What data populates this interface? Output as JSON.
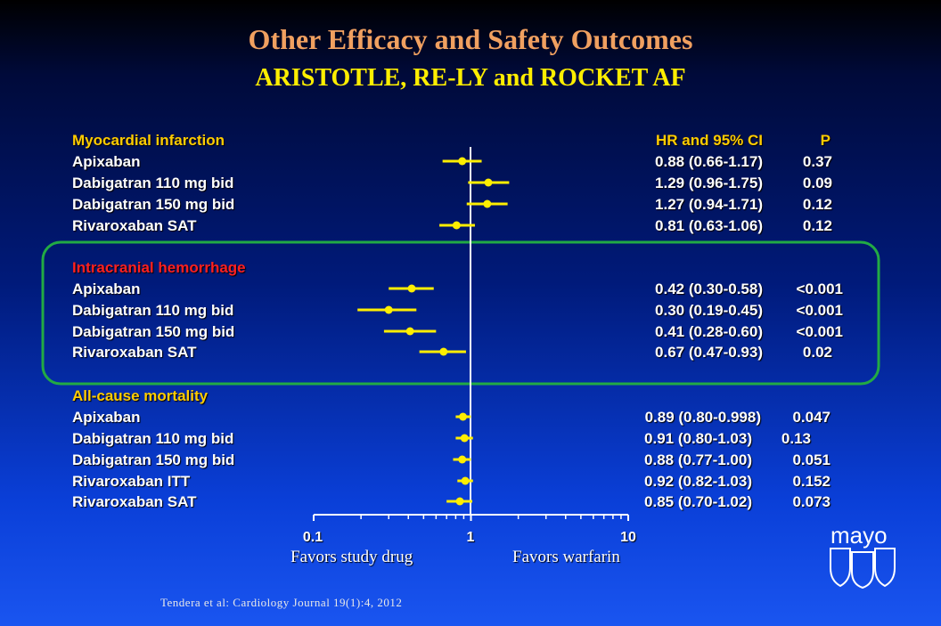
{
  "title": "Other Efficacy and Safety Outcomes",
  "subtitle": "ARISTOTLE, RE-LY and ROCKET AF",
  "columns": {
    "hr": "HR and 95% CI",
    "p": "P"
  },
  "citation": "Tendera et al: Cardiology Journal 19(1):4, 2012",
  "logo_text": "mayo",
  "colors": {
    "marker": "#ffee00",
    "axis": "#ffffff",
    "highlight_box": "#22aa44",
    "section_header": "#ffcc00",
    "section_header_alt": "#ff2020"
  },
  "axis": {
    "ticks": [
      "0.1",
      "1",
      "10"
    ],
    "left_label": "Favors study drug",
    "right_label": "Favors warfarin"
  },
  "sections": [
    {
      "header": "Myocardial infarction",
      "rows": [
        {
          "label": "Apixaban",
          "hr_text": "0.88 (0.66-1.17)",
          "p": "0.37"
        },
        {
          "label": "Dabigatran 110 mg bid",
          "hr_text": "1.29 (0.96-1.75)",
          "p": "0.09"
        },
        {
          "label": "Dabigatran 150 mg bid",
          "hr_text": "1.27 (0.94-1.71)",
          "p": "0.12"
        },
        {
          "label": "Rivaroxaban SAT",
          "hr_text": "0.81 (0.63-1.06)",
          "p": "0.12"
        }
      ]
    },
    {
      "header": "Intracranial hemorrhage",
      "rows": [
        {
          "label": "Apixaban",
          "hr_text": "0.42 (0.30-0.58)",
          "p": "<0.001"
        },
        {
          "label": "Dabigatran 110 mg bid",
          "hr_text": "0.30 (0.19-0.45)",
          "p": "<0.001"
        },
        {
          "label": "Dabigatran 150 mg bid",
          "hr_text": "0.41 (0.28-0.60)",
          "p": "<0.001"
        },
        {
          "label": "Rivaroxaban SAT",
          "hr_text": "0.67 (0.47-0.93)",
          "p": "0.02"
        }
      ]
    },
    {
      "header": "All-cause mortality",
      "rows": [
        {
          "label": "Apixaban",
          "hr_text": "0.89 (0.80-0.998)",
          "p": "0.047"
        },
        {
          "label": "Dabigatran 110 mg bid",
          "hr_text": "0.91 (0.80-1.03)",
          "p": "0.13"
        },
        {
          "label": "Dabigatran 150 mg bid",
          "hr_text": "0.88 (0.77-1.00)",
          "p": "0.051"
        },
        {
          "label": "Rivaroxaban ITT",
          "hr_text": "0.92 (0.82-1.03)",
          "p": "0.152"
        },
        {
          "label": "Rivaroxaban SAT",
          "hr_text": "0.85 (0.70-1.02)",
          "p": "0.073"
        }
      ]
    }
  ],
  "chart_data": {
    "type": "scatter",
    "subtype": "forest-plot",
    "title": "Other Efficacy and Safety Outcomes",
    "xscale": "log",
    "xlim": [
      0.1,
      10
    ],
    "reference_line": 1,
    "series": [
      {
        "name": "Myocardial infarction",
        "points": [
          {
            "label": "Apixaban",
            "hr": 0.88,
            "lo": 0.66,
            "hi": 1.17
          },
          {
            "label": "Dabigatran 110 mg bid",
            "hr": 1.29,
            "lo": 0.96,
            "hi": 1.75
          },
          {
            "label": "Dabigatran 150 mg bid",
            "hr": 1.27,
            "lo": 0.94,
            "hi": 1.71
          },
          {
            "label": "Rivaroxaban SAT",
            "hr": 0.81,
            "lo": 0.63,
            "hi": 1.06
          }
        ]
      },
      {
        "name": "Intracranial hemorrhage",
        "points": [
          {
            "label": "Apixaban",
            "hr": 0.42,
            "lo": 0.3,
            "hi": 0.58
          },
          {
            "label": "Dabigatran 110 mg bid",
            "hr": 0.3,
            "lo": 0.19,
            "hi": 0.45
          },
          {
            "label": "Dabigatran 150 mg bid",
            "hr": 0.41,
            "lo": 0.28,
            "hi": 0.6
          },
          {
            "label": "Rivaroxaban SAT",
            "hr": 0.67,
            "lo": 0.47,
            "hi": 0.93
          }
        ]
      },
      {
        "name": "All-cause mortality",
        "points": [
          {
            "label": "Apixaban",
            "hr": 0.89,
            "lo": 0.8,
            "hi": 0.998
          },
          {
            "label": "Dabigatran 110 mg bid",
            "hr": 0.91,
            "lo": 0.8,
            "hi": 1.03
          },
          {
            "label": "Dabigatran 150 mg bid",
            "hr": 0.88,
            "lo": 0.77,
            "hi": 1.0
          },
          {
            "label": "Rivaroxaban ITT",
            "hr": 0.92,
            "lo": 0.82,
            "hi": 1.03
          },
          {
            "label": "Rivaroxaban SAT",
            "hr": 0.85,
            "lo": 0.7,
            "hi": 1.02
          }
        ]
      }
    ]
  }
}
